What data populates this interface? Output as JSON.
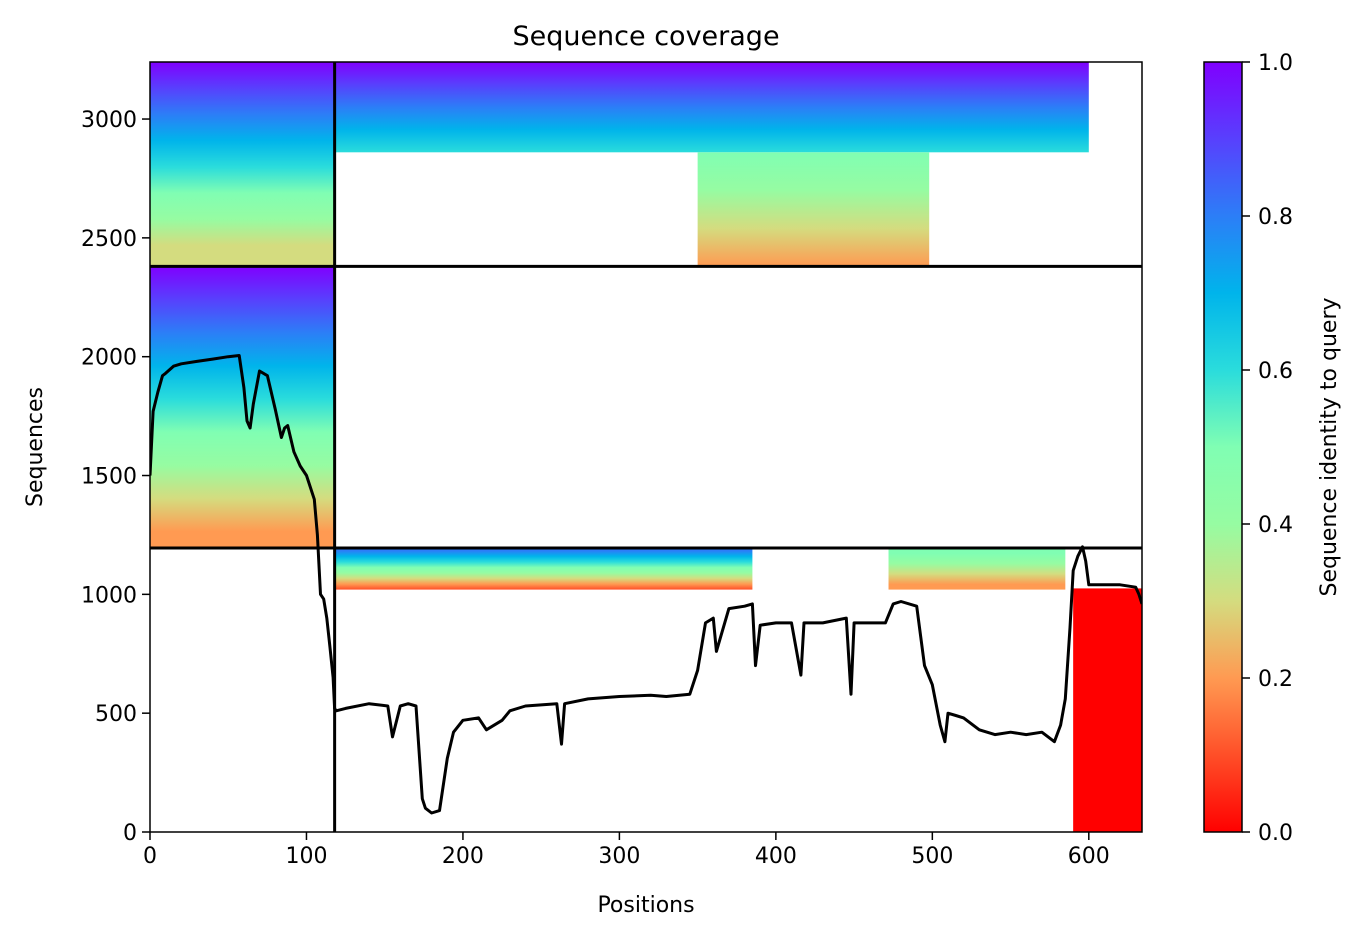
{
  "chart_data": {
    "type": "heatmap",
    "title": "Sequence coverage",
    "xlabel": "Positions",
    "ylabel": "Sequences",
    "colorbar_label": "Sequence identity to query",
    "colormap": "rainbow_r",
    "xlim": [
      0,
      634
    ],
    "ylim": [
      0,
      3240
    ],
    "xticks": [
      0,
      100,
      200,
      300,
      400,
      500,
      600
    ],
    "yticks": [
      0,
      500,
      1000,
      1500,
      2000,
      2500,
      3000
    ],
    "colorbar_ticks": [
      "0.0",
      "0.2",
      "0.4",
      "0.6",
      "0.8",
      "1.0"
    ],
    "segment_dividers": {
      "x": [
        118
      ],
      "y": [
        1195,
        2380
      ]
    },
    "coverage_blocks": [
      {
        "x": [
          0,
          118
        ],
        "y": [
          2380,
          3240
        ],
        "identity_top": 1.0,
        "identity_bottom": 0.22
      },
      {
        "x": [
          118,
          600
        ],
        "y": [
          2860,
          3240
        ],
        "identity_top": 1.0,
        "identity_bottom": 0.6
      },
      {
        "x": [
          350,
          498
        ],
        "y": [
          2380,
          2860
        ],
        "identity_top": 0.5,
        "identity_bottom": 0.2
      },
      {
        "x": [
          0,
          118
        ],
        "y": [
          1195,
          2380
        ],
        "identity_top": 1.0,
        "identity_bottom": 0.15
      },
      {
        "x": [
          118,
          385
        ],
        "y": [
          1020,
          1195
        ],
        "identity_top": 0.85,
        "identity_bottom": 0.1
      },
      {
        "x": [
          472,
          585
        ],
        "y": [
          1020,
          1195
        ],
        "identity_top": 0.55,
        "identity_bottom": 0.15
      },
      {
        "x": [
          590,
          634
        ],
        "y": [
          0,
          1025
        ],
        "identity_top": 0.05,
        "identity_bottom": 0.05
      }
    ],
    "coverage_line": {
      "x": [
        0,
        2,
        5,
        8,
        10,
        15,
        20,
        30,
        40,
        50,
        57,
        60,
        62,
        64,
        66,
        70,
        75,
        80,
        84,
        86,
        88,
        92,
        96,
        100,
        105,
        107,
        109,
        111,
        113,
        115,
        117,
        118,
        119,
        125,
        140,
        152,
        155,
        160,
        165,
        170,
        174,
        176,
        180,
        185,
        190,
        194,
        200,
        210,
        215,
        225,
        230,
        240,
        260,
        263,
        265,
        280,
        300,
        320,
        330,
        345,
        350,
        355,
        360,
        362,
        370,
        380,
        385,
        387,
        390,
        400,
        410,
        416,
        418,
        420,
        430,
        445,
        448,
        450,
        452,
        460,
        470,
        475,
        480,
        490,
        495,
        500,
        505,
        508,
        510,
        515,
        520,
        530,
        540,
        550,
        560,
        570,
        578,
        582,
        585,
        588,
        590,
        593,
        596,
        598,
        600,
        602,
        605,
        610,
        620,
        630,
        632,
        634
      ],
      "y": [
        1500,
        1770,
        1850,
        1920,
        1930,
        1960,
        1970,
        1980,
        1990,
        2000,
        2005,
        1870,
        1730,
        1700,
        1800,
        1940,
        1920,
        1780,
        1660,
        1700,
        1710,
        1600,
        1540,
        1500,
        1400,
        1250,
        1000,
        980,
        900,
        780,
        650,
        520,
        510,
        520,
        540,
        530,
        400,
        530,
        540,
        530,
        140,
        100,
        80,
        90,
        310,
        420,
        470,
        480,
        430,
        470,
        510,
        530,
        540,
        370,
        540,
        560,
        570,
        575,
        570,
        580,
        680,
        880,
        900,
        760,
        940,
        950,
        960,
        700,
        870,
        880,
        880,
        660,
        880,
        880,
        880,
        900,
        580,
        880,
        880,
        880,
        880,
        960,
        970,
        950,
        700,
        620,
        450,
        380,
        500,
        490,
        480,
        430,
        410,
        420,
        410,
        420,
        380,
        450,
        560,
        860,
        1100,
        1160,
        1200,
        1140,
        1040,
        1040,
        1040,
        1040,
        1040,
        1030,
        1000,
        960
      ]
    }
  }
}
